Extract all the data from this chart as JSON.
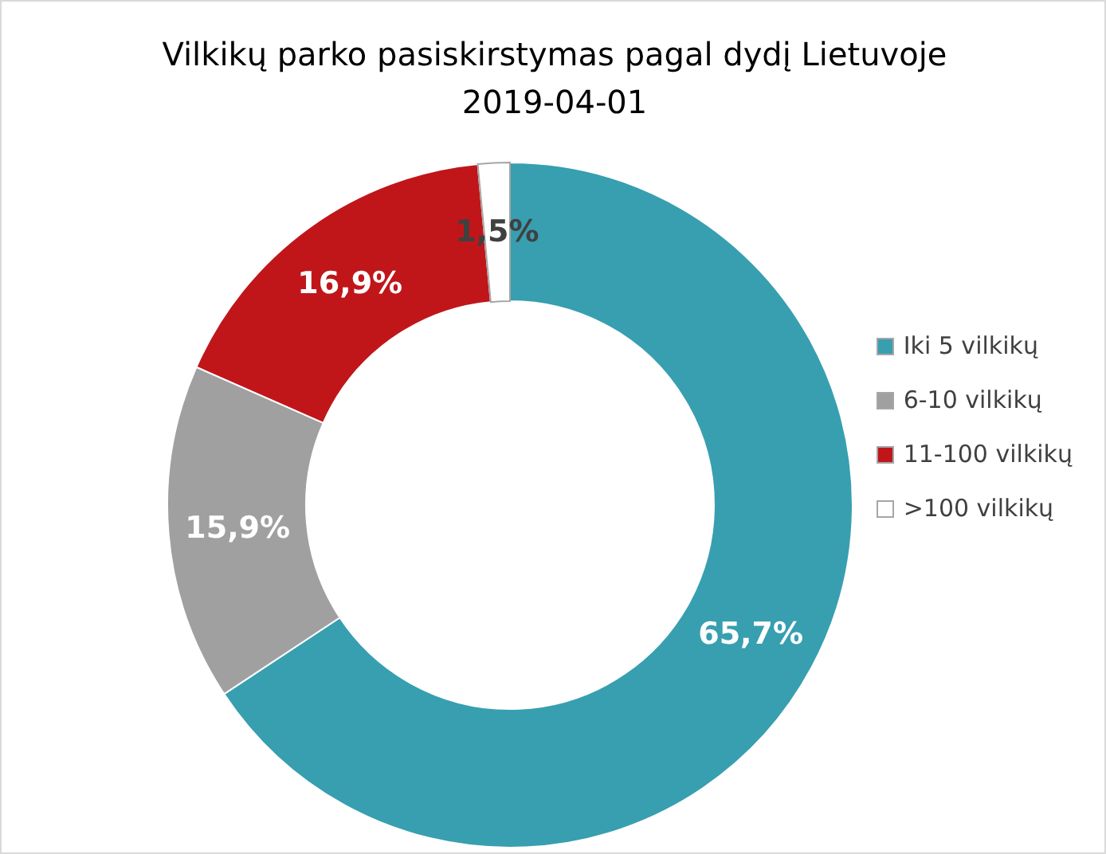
{
  "chart_data": {
    "type": "donut",
    "title": "Vilkikų parko pasiskirstymas pagal dydį Lietuvoje\n2019-04-01",
    "categories": [
      "Iki 5 vilkikų",
      "6-10 vilkikų",
      "11-100 vilkikų",
      ">100 vilkikų"
    ],
    "values": [
      65.7,
      15.9,
      16.9,
      1.5
    ],
    "colors": [
      "#379fb0",
      "#a0a0a0",
      "#c0161a",
      "#ffffff"
    ],
    "value_labels": [
      "65,7%",
      "15,9%",
      "16,9%",
      "1,5%"
    ],
    "legend": "right"
  }
}
